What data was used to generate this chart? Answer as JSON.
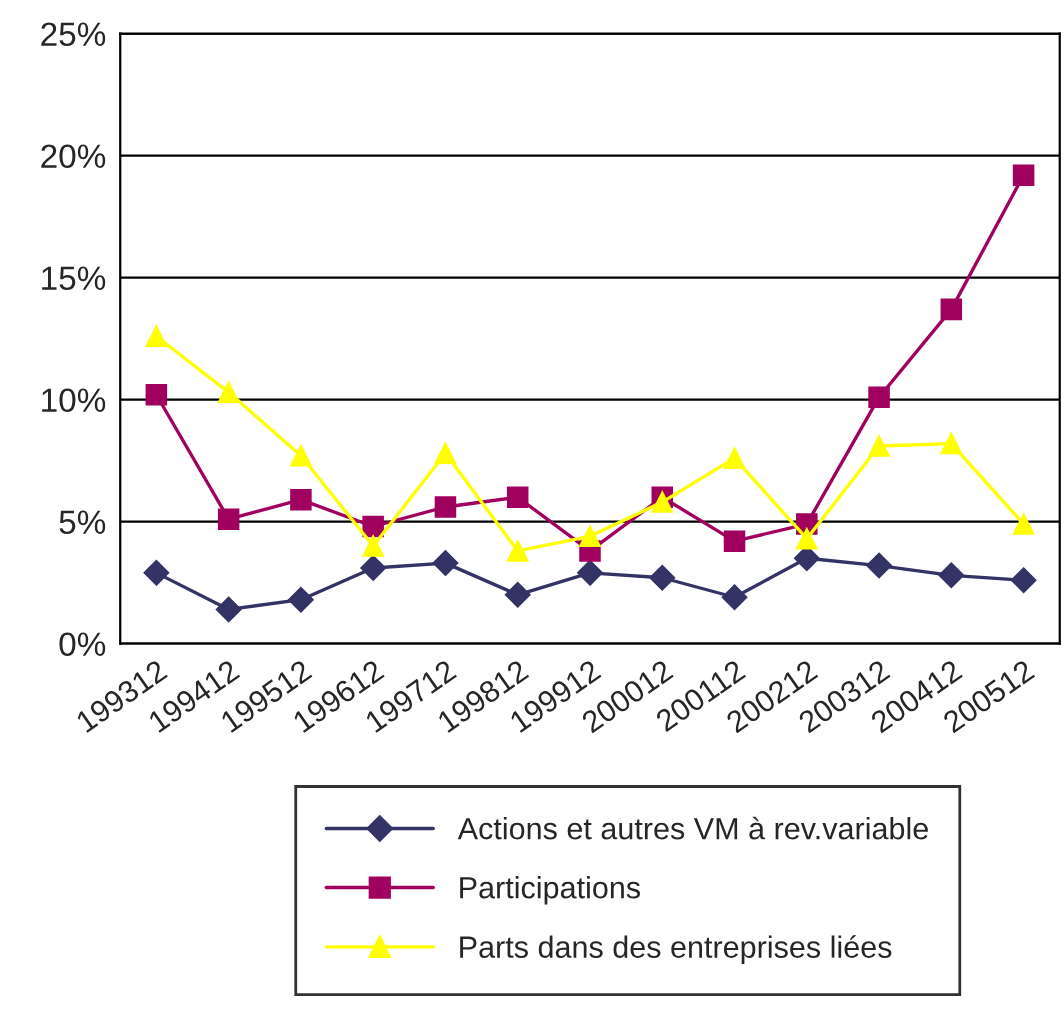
{
  "chart_data": {
    "type": "line",
    "categories": [
      "199312",
      "199412",
      "199512",
      "199612",
      "199712",
      "199812",
      "199912",
      "200012",
      "200112",
      "200212",
      "200312",
      "200412",
      "200512"
    ],
    "series": [
      {
        "name": "Actions et autres VM à rev.variable",
        "color": "#333366",
        "marker": "diamond",
        "values": [
          2.9,
          1.4,
          1.8,
          3.1,
          3.3,
          2.0,
          2.9,
          2.7,
          1.9,
          3.5,
          3.2,
          2.8,
          2.6
        ]
      },
      {
        "name": "Participations",
        "color": "#a0005e",
        "marker": "square",
        "values": [
          10.2,
          5.1,
          5.9,
          4.8,
          5.6,
          6.0,
          3.8,
          6.0,
          4.2,
          4.9,
          10.1,
          13.7,
          19.2
        ]
      },
      {
        "name": "Parts dans des entreprises liées",
        "color": "#ffff00",
        "marker": "triangle",
        "values": [
          12.6,
          10.3,
          7.7,
          4.0,
          7.8,
          3.8,
          4.4,
          5.8,
          7.6,
          4.3,
          8.1,
          8.2,
          4.9
        ]
      }
    ],
    "ylim": [
      0,
      25
    ],
    "yticks": [
      {
        "value": 0,
        "label": "0%"
      },
      {
        "value": 5,
        "label": "5%"
      },
      {
        "value": 10,
        "label": "10%"
      },
      {
        "value": 15,
        "label": "15%"
      },
      {
        "value": 20,
        "label": "20%"
      },
      {
        "value": 25,
        "label": "25%"
      }
    ],
    "grid": "y",
    "legend": "bottom",
    "line_style": "solid"
  }
}
